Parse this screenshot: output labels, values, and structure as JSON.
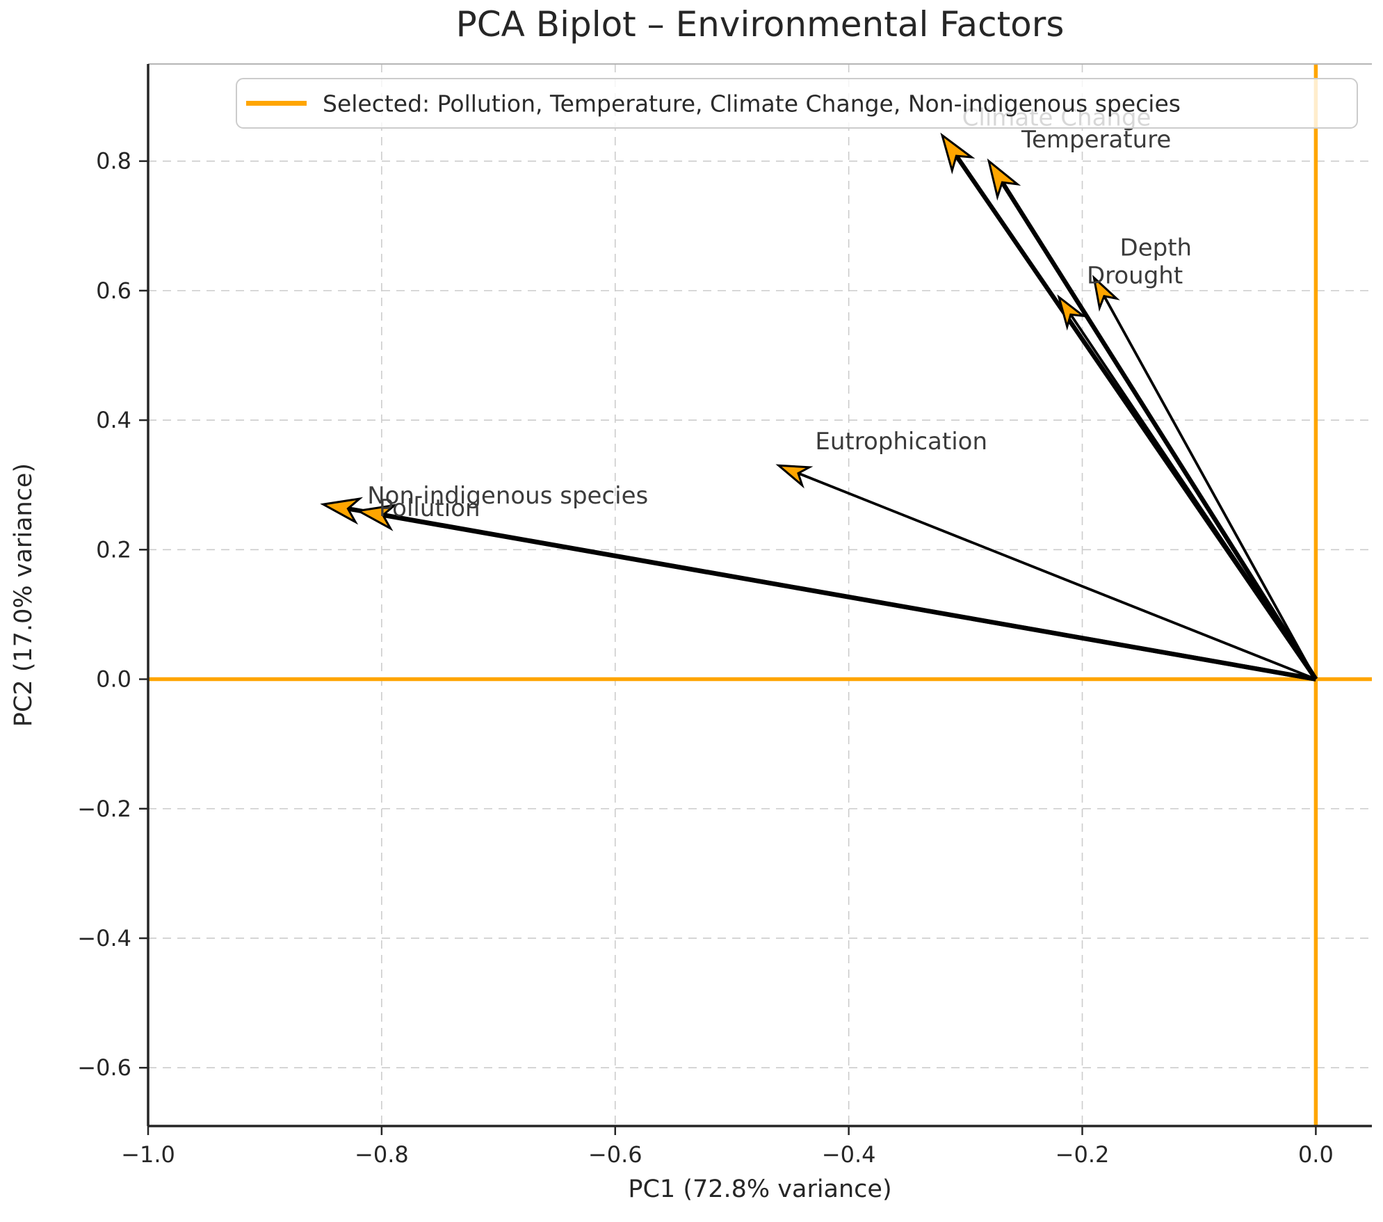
{
  "chart_data": {
    "type": "scatter",
    "subtype": "pca_biplot",
    "title": "PCA Biplot – Environmental Factors",
    "xlabel": "PC1 (72.8% variance)",
    "ylabel": "PC2 (17.0% variance)",
    "xlim": [
      -1.0,
      0.048
    ],
    "ylim": [
      -0.69,
      0.95
    ],
    "x_ticks": [
      -1.0,
      -0.8,
      -0.6,
      -0.4,
      -0.2,
      0.0
    ],
    "y_ticks": [
      -0.6,
      -0.4,
      -0.2,
      0.0,
      0.2,
      0.4,
      0.6,
      0.8
    ],
    "grid": true,
    "grid_color": "#cccccc",
    "origin_line_color": "#FFA500",
    "arrow_shaft_color": "#000000",
    "arrowhead_fill": "#FFA500",
    "label_color": "#3b3b3b",
    "legend": {
      "label": "Selected: Pollution, Temperature, Climate Change, Non-indigenous species",
      "line_color": "#FFA500",
      "position": "upper center"
    },
    "vectors": [
      {
        "name": "Climate Change",
        "x": -0.32,
        "y": 0.84,
        "selected": true,
        "label_at": [
          -0.222,
          0.868
        ],
        "label_behind_legend": true
      },
      {
        "name": "Temperature",
        "x": -0.28,
        "y": 0.8,
        "selected": true,
        "label_at": [
          -0.188,
          0.834
        ],
        "label_behind_legend": false
      },
      {
        "name": "Depth",
        "x": -0.19,
        "y": 0.62,
        "selected": false,
        "label_at": [
          -0.137,
          0.667
        ],
        "label_behind_legend": false
      },
      {
        "name": "Drought",
        "x": -0.22,
        "y": 0.59,
        "selected": false,
        "label_at": [
          -0.155,
          0.624
        ],
        "label_behind_legend": false
      },
      {
        "name": "Eutrophication",
        "x": -0.46,
        "y": 0.33,
        "selected": false,
        "label_at": [
          -0.355,
          0.368
        ],
        "label_behind_legend": false
      },
      {
        "name": "Non-indigenous species",
        "x": -0.85,
        "y": 0.27,
        "selected": true,
        "label_at": [
          -0.692,
          0.284
        ],
        "label_behind_legend": false
      },
      {
        "name": "Pollution",
        "x": -0.82,
        "y": 0.26,
        "selected": true,
        "label_at": [
          -0.759,
          0.265
        ],
        "label_behind_legend": false
      }
    ]
  }
}
